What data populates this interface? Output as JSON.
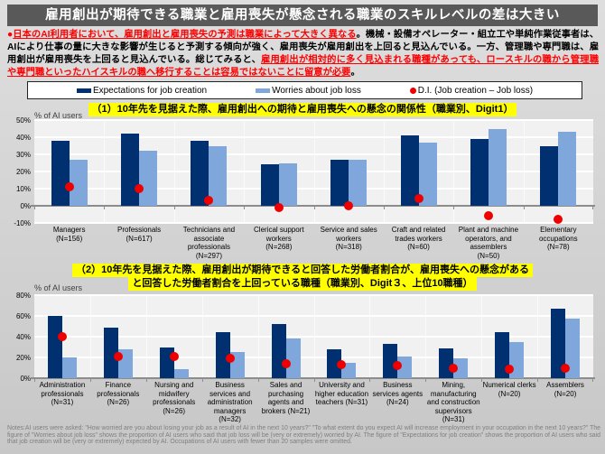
{
  "slide": {
    "title": "雇用創出が期待できる職業と雇用喪失が懸念される職業のスキルレベルの差は大きい",
    "lead": {
      "bullet": "●",
      "segments": [
        {
          "style": "red",
          "text": "日本のAI利用者において、雇用創出と雇用喪失の予測は職業によって大きく異なる"
        },
        {
          "style": "black",
          "text": "。機械・設備オペレーター・組立工や単純作業従事者は、AIにより仕事の量に大きな影響が生じると予測する傾向が強く、雇用喪失が雇用創出を上回ると見込んでいる。一方、管理職や専門職は、雇用創出が雇用喪失を上回ると見込んでいる。総じてみると、"
        },
        {
          "style": "red",
          "text": "雇用創出が相対的に多く見込まれる職種があっても、ロースキルの職から管理職や専門職といったハイスキルの職へ移行することは容易ではないことに留意が必要"
        },
        {
          "style": "black",
          "text": "。"
        }
      ]
    }
  },
  "legend": {
    "items": [
      {
        "label": "Expectations for job creation",
        "marker": "bar-dark"
      },
      {
        "label": "Worries about job loss",
        "marker": "bar-light"
      },
      {
        "label": "D.I. (Job creation – Job loss)",
        "marker": "dot-red"
      }
    ]
  },
  "colors": {
    "bar_dark": "#00306F",
    "bar_light": "#7FA7DC",
    "dot_red": "#EE0000",
    "highlight": "#FFFF00",
    "title_bar": "#595959"
  },
  "chart_data": [
    {
      "type": "bar",
      "title": "（1）10年先を見据えた際、雇用創出への期待と雇用喪失への懸念の関係性（職業別、Digit1）",
      "title_lines": [
        "（1）10年先を見据えた際、雇用創出への期待と雇用喪失への懸念の関係性（職業別、Digit1）"
      ],
      "ylabel": "% of AI users",
      "xlabel": "",
      "ylim": [
        -10,
        50
      ],
      "yticks": [
        50,
        40,
        30,
        20,
        10,
        0,
        -10
      ],
      "grid": true,
      "legend_position": "top",
      "categories": [
        "Managers (N=156)",
        "Professionals (N=617)",
        "Technicians and associate professionals (N=297)",
        "Clerical support workers (N=268)",
        "Service and sales workers (N=318)",
        "Craft and related trades workers (N=60)",
        "Plant and machine operators, and assemblers (N=50)",
        "Elementary occupations (N=78)"
      ],
      "category_lines": [
        [
          "Managers",
          "(N=156)"
        ],
        [
          "Professionals",
          "(N=617)"
        ],
        [
          "Technicians and",
          "associate",
          "professionals",
          "(N=297)"
        ],
        [
          "Clerical support",
          "workers",
          "(N=268)"
        ],
        [
          "Service and sales",
          "workers",
          "(N=318)"
        ],
        [
          "Craft and related",
          "trades workers",
          "(N=60)"
        ],
        [
          "Plant and machine",
          "operators, and",
          "assemblers",
          "(N=50)"
        ],
        [
          "Elementary",
          "occupations",
          "(N=78)"
        ]
      ],
      "series": [
        {
          "name": "Expectations for job creation",
          "style": "bar-dark",
          "values": [
            38,
            42,
            38,
            24,
            27,
            41,
            39,
            35
          ]
        },
        {
          "name": "Worries about job loss",
          "style": "bar-light",
          "values": [
            27,
            32,
            35,
            25,
            27,
            37,
            45,
            43
          ]
        },
        {
          "name": "D.I. (Job creation – Job loss)",
          "style": "dot-red",
          "values": [
            11,
            10,
            3,
            -1,
            0,
            4,
            -6,
            -8
          ]
        }
      ]
    },
    {
      "type": "bar",
      "title": "（2）10年先を見据えた際、雇用創出が期待できると回答した労働者割合が、雇用喪失への懸念があると回答した労働者割合を上回っている職種（職業別、Digit３、上位10職種）",
      "title_lines": [
        "（2）10年先を見据えた際、雇用創出が期待できると回答した労働者割合が、雇用喪失への懸念がある",
        "と回答した労働者割合を上回っている職種（職業別、Digit３、上位10職種）"
      ],
      "ylabel": "% of AI users",
      "xlabel": "",
      "ylim": [
        0,
        80
      ],
      "yticks": [
        80,
        60,
        40,
        20,
        0
      ],
      "grid": true,
      "legend_position": "top",
      "categories": [
        "Administration professionals (N=31)",
        "Finance professionals (N=26)",
        "Nursing and midwifery professionals (N=26)",
        "Business services and administration managers (N=32)",
        "Sales and purchasing agents and brokers (N=21)",
        "University and higher education teachers (N=31)",
        "Business services agents (N=24)",
        "Mining, manufacturing and construction supervisors (N=31)",
        "Numerical clerks (N=20)",
        "Assemblers (N=20)"
      ],
      "category_lines": [
        [
          "Administration",
          "professionals",
          "(N=31)"
        ],
        [
          "Finance",
          "professionals",
          "(N=26)"
        ],
        [
          "Nursing and",
          "midwifery",
          "professionals",
          "(N=26)"
        ],
        [
          "Business",
          "services and",
          "administration",
          "managers",
          "(N=32)"
        ],
        [
          "Sales and",
          "purchasing",
          "agents and",
          "brokers (N=21)"
        ],
        [
          "University and",
          "higher education",
          "teachers (N=31)"
        ],
        [
          "Business",
          "services agents",
          "(N=24)"
        ],
        [
          "Mining,",
          "manufacturing",
          "and construction",
          "supervisors",
          "(N=31)"
        ],
        [
          "Numerical clerks",
          "(N=20)"
        ],
        [
          "Assemblers",
          "(N=20)"
        ]
      ],
      "series": [
        {
          "name": "Expectations for job creation",
          "style": "bar-dark",
          "values": [
            60,
            49,
            30,
            44,
            52,
            28,
            33,
            29,
            44,
            67
          ]
        },
        {
          "name": "Worries about job loss",
          "style": "bar-light",
          "values": [
            20,
            28,
            9,
            25,
            38,
            15,
            21,
            19,
            35,
            57
          ]
        },
        {
          "name": "D.I. (Job creation – Job loss)",
          "style": "dot-red",
          "values": [
            40,
            21,
            21,
            19,
            14,
            13,
            12,
            10,
            9,
            10
          ]
        }
      ]
    }
  ],
  "notes": "Notes:AI users were asked: \"How worried are you about losing your job as a result of AI in the next 10 years?\" \"To what extent do you expect AI will increase employment in your occupation in the next 10 years?\" The figure of \"Worries about job loss\" shows the proportion of AI users who said that job loss will be (very or extremely) worried by AI. The figure of \"Expectations for job creation\" shows the proportion of AI users who said that job creation will be (very or extremely) expected by AI.  Occupations of AI users with fewer than 20 samples were omitted."
}
